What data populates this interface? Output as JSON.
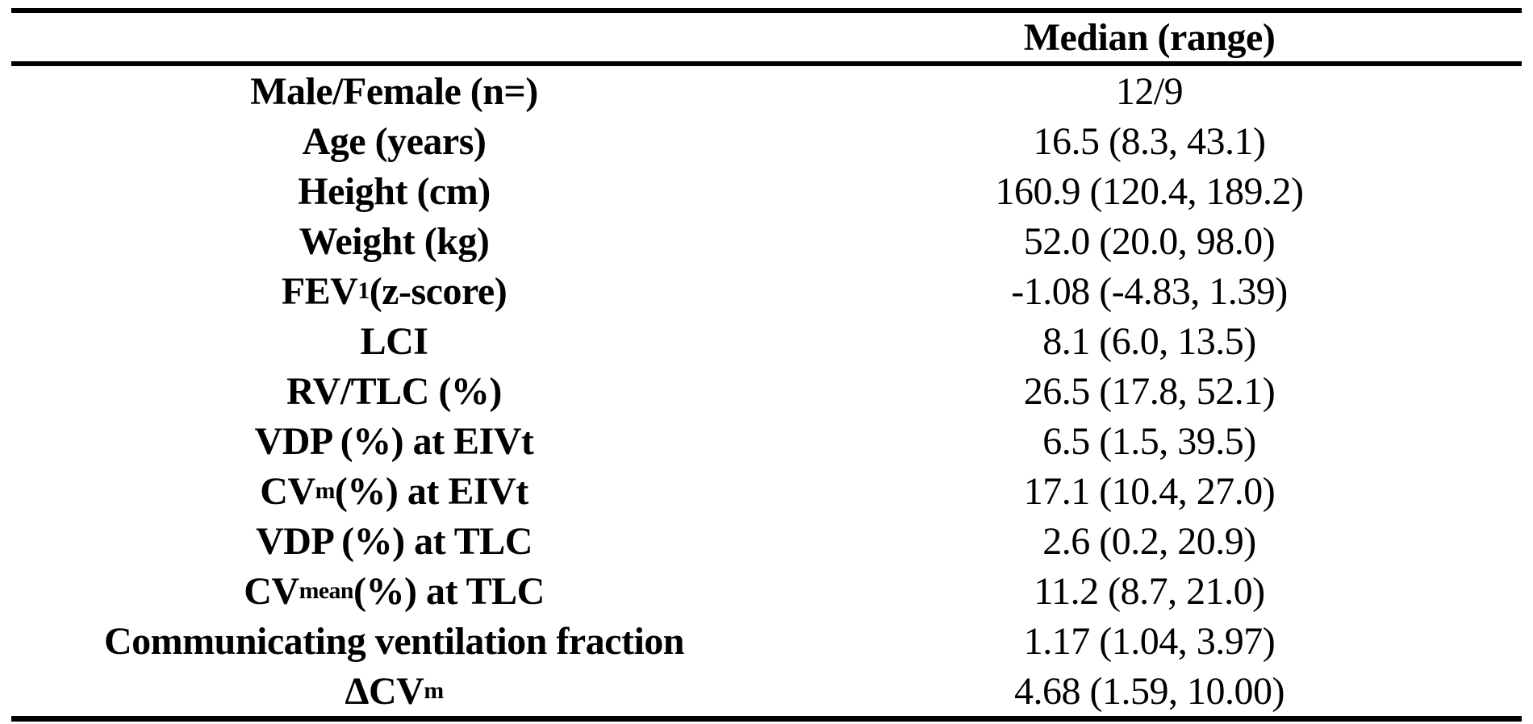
{
  "colors": {
    "background": "#ffffff",
    "text": "#000000",
    "rule": "#000000"
  },
  "table": {
    "header": {
      "label_col": "",
      "value_col": "Median (range)"
    },
    "rows": [
      {
        "label": [
          {
            "t": "Male/Female (n=)"
          }
        ],
        "value": "12/9"
      },
      {
        "label": [
          {
            "t": "Age (years)"
          }
        ],
        "value": "16.5 (8.3, 43.1)"
      },
      {
        "label": [
          {
            "t": "Height (cm)"
          }
        ],
        "value": "160.9 (120.4, 189.2)"
      },
      {
        "label": [
          {
            "t": "Weight (kg)"
          }
        ],
        "value": "52.0 (20.0, 98.0)"
      },
      {
        "label": [
          {
            "t": "FEV"
          },
          {
            "t": "1",
            "sub": true
          },
          {
            "t": " (z-score)"
          }
        ],
        "value": "-1.08 (-4.83, 1.39)"
      },
      {
        "label": [
          {
            "t": "LCI"
          }
        ],
        "value": "8.1 (6.0, 13.5)"
      },
      {
        "label": [
          {
            "t": "RV/TLC (%)"
          }
        ],
        "value": "26.5 (17.8, 52.1)"
      },
      {
        "label": [
          {
            "t": "VDP (%) at EIVt"
          }
        ],
        "value": "6.5 (1.5, 39.5)"
      },
      {
        "label": [
          {
            "t": "CV"
          },
          {
            "t": "m",
            "sub": true
          },
          {
            "t": " (%) at EIVt"
          }
        ],
        "value": "17.1 (10.4, 27.0)"
      },
      {
        "label": [
          {
            "t": "VDP (%) at TLC"
          }
        ],
        "value": "2.6 (0.2, 20.9)"
      },
      {
        "label": [
          {
            "t": "CV"
          },
          {
            "t": "mean",
            "sub": true
          },
          {
            "t": " (%) at TLC"
          }
        ],
        "value": "11.2 (8.7, 21.0)"
      },
      {
        "label": [
          {
            "t": "Communicating ventilation fraction"
          }
        ],
        "value": "1.17 (1.04, 3.97)"
      },
      {
        "label": [
          {
            "t": "ΔCV"
          },
          {
            "t": "m",
            "sub": true
          }
        ],
        "value": "4.68 (1.59, 10.00)"
      }
    ]
  }
}
